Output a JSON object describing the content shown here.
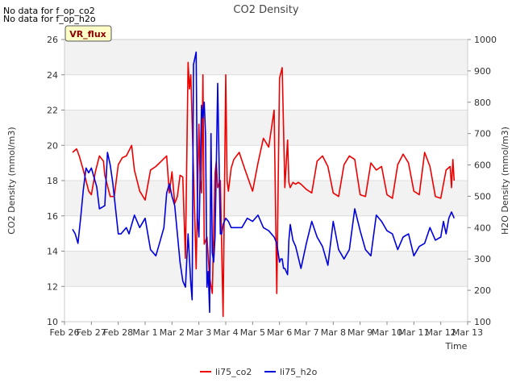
{
  "notices": [
    "No data for f_op_co2",
    "No data for f_op_h2o"
  ],
  "badge": "VR_flux",
  "chart_data": {
    "type": "line",
    "title": "CO2 Density",
    "xlabel": "Time",
    "ylabel": "CO2 Density (mmol/m3)",
    "y2label": "H2O Density (mmol/m3)",
    "xlim": [
      0,
      15
    ],
    "ylim": [
      10,
      26
    ],
    "y2lim": [
      100,
      1000
    ],
    "x_ticks": [
      0,
      1,
      2,
      3,
      4,
      5,
      6,
      7,
      8,
      9,
      10,
      11,
      12,
      13,
      14,
      15
    ],
    "x_tick_labels": [
      "Feb 26",
      "Feb 27",
      "Feb 28",
      "Mar 1",
      "Mar 2",
      "Mar 3",
      "Mar 4",
      "Mar 5",
      "Mar 6",
      "Mar 7",
      "Mar 8",
      "Mar 9",
      "Mar 10",
      "Mar 11",
      "Mar 12",
      "Mar 13"
    ],
    "y_ticks": [
      10,
      12,
      14,
      16,
      18,
      20,
      22,
      24,
      26
    ],
    "y2_ticks": [
      100,
      200,
      300,
      400,
      500,
      600,
      700,
      800,
      900,
      1000
    ],
    "grid_bands": true,
    "legend_position": "bottom",
    "colors": {
      "co2": "#ee0000",
      "h2o": "#0000dd"
    },
    "series": [
      {
        "name": "li75_co2",
        "axis": "left",
        "x": [
          0.3,
          0.45,
          0.55,
          0.7,
          0.9,
          1.0,
          1.15,
          1.3,
          1.45,
          1.5,
          1.7,
          1.85,
          2.0,
          2.15,
          2.3,
          2.5,
          2.6,
          2.8,
          3.0,
          3.2,
          3.4,
          3.6,
          3.8,
          3.9,
          4.0,
          4.1,
          4.2,
          4.3,
          4.4,
          4.5,
          4.6,
          4.65,
          4.7,
          4.8,
          4.9,
          5.0,
          5.05,
          5.1,
          5.15,
          5.2,
          5.3,
          5.4,
          5.5,
          5.6,
          5.65,
          5.7,
          5.8,
          5.9,
          6.0,
          6.05,
          6.1,
          6.2,
          6.3,
          6.5,
          6.7,
          7.0,
          7.2,
          7.4,
          7.6,
          7.8,
          7.9,
          8.0,
          8.1,
          8.2,
          8.3,
          8.35,
          8.4,
          8.5,
          8.6,
          8.7,
          8.8,
          9.0,
          9.2,
          9.4,
          9.6,
          9.8,
          10.0,
          10.2,
          10.4,
          10.6,
          10.8,
          11.0,
          11.2,
          11.4,
          11.6,
          11.8,
          12.0,
          12.2,
          12.4,
          12.6,
          12.8,
          13.0,
          13.2,
          13.4,
          13.6,
          13.8,
          14.0,
          14.2,
          14.35,
          14.4,
          14.45,
          14.5
        ],
        "y": [
          19.6,
          19.8,
          19.4,
          18.6,
          17.4,
          17.2,
          18.5,
          19.4,
          19.1,
          18.3,
          17.1,
          17.1,
          18.9,
          19.3,
          19.4,
          20.0,
          18.6,
          17.4,
          16.9,
          18.6,
          18.8,
          19.1,
          19.4,
          17.3,
          18.5,
          16.7,
          17.1,
          18.3,
          18.2,
          13.6,
          24.7,
          23.2,
          24.0,
          18.5,
          13.0,
          21.2,
          18.0,
          17.3,
          24.0,
          14.4,
          14.8,
          12.5,
          11.6,
          18.4,
          19.1,
          17.6,
          18.0,
          10.3,
          24.0,
          18.0,
          17.4,
          18.7,
          19.2,
          19.6,
          18.7,
          17.4,
          19.0,
          20.4,
          19.9,
          22.0,
          11.6,
          23.8,
          24.4,
          17.6,
          20.3,
          17.9,
          17.6,
          17.9,
          17.8,
          17.9,
          17.8,
          17.5,
          17.3,
          19.1,
          19.4,
          18.8,
          17.3,
          17.1,
          18.9,
          19.4,
          19.2,
          17.2,
          17.1,
          19.0,
          18.6,
          18.8,
          17.2,
          17.0,
          18.9,
          19.5,
          19.0,
          17.4,
          17.2,
          19.6,
          18.8,
          17.1,
          17.0,
          18.6,
          18.8,
          17.6,
          19.2,
          18.0
        ]
      },
      {
        "name": "li75_h2o",
        "axis": "right",
        "x": [
          0.3,
          0.4,
          0.5,
          0.6,
          0.7,
          0.8,
          0.9,
          1.0,
          1.2,
          1.3,
          1.5,
          1.6,
          1.7,
          1.8,
          2.0,
          2.1,
          2.3,
          2.4,
          2.6,
          2.8,
          3.0,
          3.2,
          3.4,
          3.5,
          3.7,
          3.8,
          3.9,
          4.0,
          4.1,
          4.2,
          4.3,
          4.4,
          4.5,
          4.6,
          4.7,
          4.75,
          4.8,
          4.9,
          4.95,
          5.0,
          5.1,
          5.15,
          5.2,
          5.25,
          5.3,
          5.35,
          5.4,
          5.45,
          5.5,
          5.55,
          5.6,
          5.65,
          5.7,
          5.8,
          5.85,
          5.9,
          6.0,
          6.1,
          6.2,
          6.4,
          6.6,
          6.8,
          7.0,
          7.2,
          7.4,
          7.6,
          7.8,
          7.9,
          8.0,
          8.05,
          8.1,
          8.15,
          8.2,
          8.25,
          8.3,
          8.35,
          8.4,
          8.5,
          8.6,
          8.8,
          9.0,
          9.2,
          9.4,
          9.6,
          9.8,
          10.0,
          10.2,
          10.4,
          10.6,
          10.8,
          11.0,
          11.2,
          11.4,
          11.6,
          11.8,
          12.0,
          12.2,
          12.4,
          12.6,
          12.8,
          13.0,
          13.2,
          13.4,
          13.6,
          13.8,
          14.0,
          14.1,
          14.2,
          14.3,
          14.4,
          14.45,
          14.5
        ],
        "y": [
          395,
          380,
          350,
          430,
          520,
          590,
          575,
          590,
          530,
          460,
          470,
          640,
          600,
          540,
          380,
          380,
          400,
          380,
          440,
          400,
          430,
          330,
          310,
          340,
          400,
          510,
          540,
          500,
          470,
          380,
          290,
          230,
          210,
          380,
          220,
          170,
          920,
          960,
          430,
          370,
          790,
          750,
          800,
          690,
          210,
          260,
          130,
          700,
          320,
          290,
          370,
          600,
          860,
          380,
          380,
          410,
          430,
          420,
          400,
          400,
          400,
          430,
          420,
          440,
          400,
          390,
          370,
          350,
          290,
          300,
          300,
          270,
          270,
          260,
          250,
          360,
          410,
          360,
          340,
          270,
          350,
          420,
          370,
          340,
          280,
          420,
          330,
          300,
          330,
          460,
          390,
          330,
          310,
          440,
          420,
          390,
          380,
          330,
          370,
          380,
          310,
          340,
          350,
          400,
          360,
          370,
          420,
          380,
          430,
          450,
          440,
          430
        ]
      }
    ]
  }
}
